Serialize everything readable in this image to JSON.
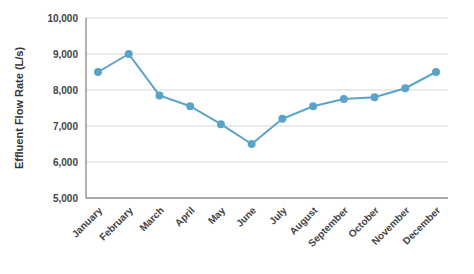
{
  "chart_data": {
    "type": "line",
    "categories": [
      "January",
      "February",
      "March",
      "April",
      "May",
      "June",
      "July",
      "August",
      "September",
      "October",
      "November",
      "December"
    ],
    "values": [
      8500,
      9000,
      7850,
      7550,
      7050,
      6500,
      7200,
      7550,
      7750,
      7800,
      8050,
      8500
    ],
    "color": "#5BA3C9",
    "marker": "circle",
    "ylabel": "Effluent Flow Rate (L/s)",
    "ylim": [
      5000,
      10000
    ],
    "yticks": [
      {
        "value": 5000,
        "label": "5,000"
      },
      {
        "value": 6000,
        "label": "6,000"
      },
      {
        "value": 7000,
        "label": "7,000"
      },
      {
        "value": 8000,
        "label": "8,000"
      },
      {
        "value": 9000,
        "label": "9,000"
      },
      {
        "value": 10000,
        "label": "10,000"
      }
    ],
    "grid": true
  }
}
